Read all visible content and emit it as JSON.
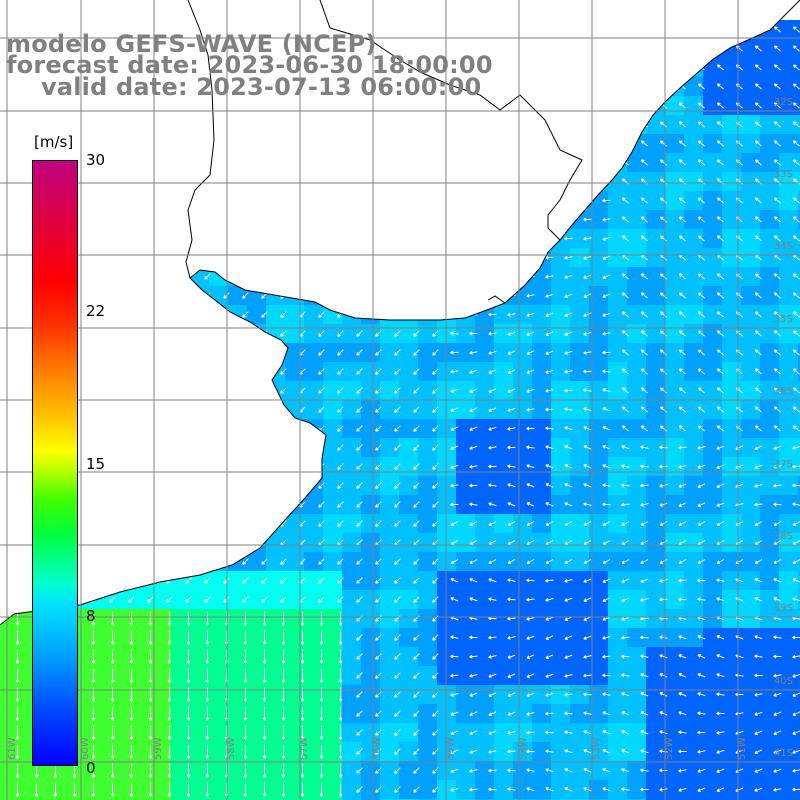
{
  "title": {
    "line1": "modelo GEFS-WAVE (NCEP)",
    "line2": "forecast date: 2023-06-30 18:00:00",
    "line3": "valid date: 2023-07-13 06:00:00"
  },
  "colorbar": {
    "unit": "[m/s]",
    "ticks": [
      "30",
      "22",
      "15",
      "8",
      "0"
    ],
    "tick_values": [
      30,
      22,
      15,
      8,
      0
    ],
    "min": 0,
    "max": 30
  },
  "map": {
    "lat_labels": [
      "32S",
      "33S",
      "34S",
      "35S",
      "36S",
      "37S",
      "38S",
      "39S",
      "40S",
      "41S"
    ],
    "lon_labels": [
      "61W",
      "60W",
      "59W",
      "58W",
      "57W",
      "56W",
      "55W",
      "54W",
      "53W",
      "52W",
      "51W"
    ],
    "colors": {
      "land": "#ffffff",
      "coastline": "#000000",
      "grid": "#808080",
      "arrow": "#ffffff",
      "dark_blue": "#0064ff",
      "mid_blue": "#00a0ff",
      "light_blue": "#00d8ff",
      "cyan": "#00fff0",
      "green": "#40ff30"
    }
  }
}
